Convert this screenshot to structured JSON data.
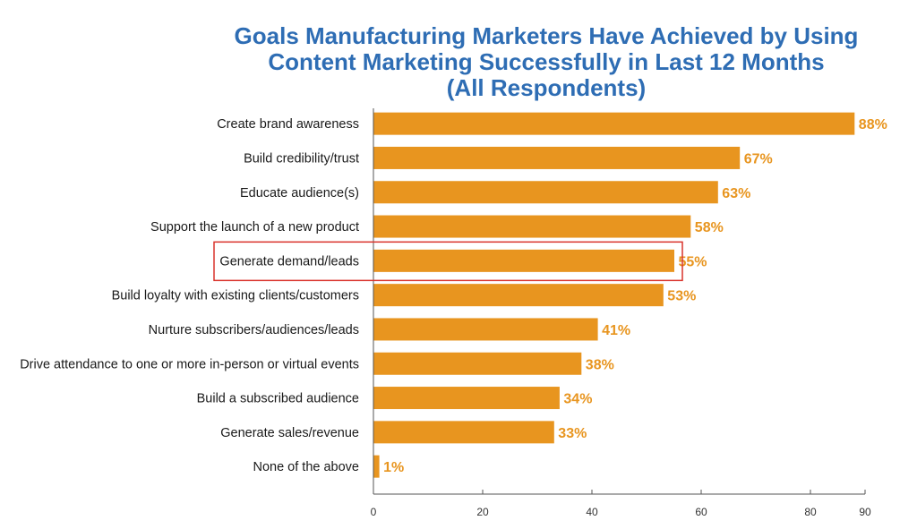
{
  "chart_data": {
    "type": "bar",
    "orientation": "horizontal",
    "title": [
      "Goals Manufacturing Marketers Have Achieved by Using",
      "Content Marketing Successfully in Last 12 Months",
      "(All Respondents)"
    ],
    "categories": [
      "Create brand awareness",
      "Build credibility/trust",
      "Educate audience(s)",
      "Support the launch of a new product",
      "Generate demand/leads",
      "Build loyalty with existing clients/customers",
      "Nurture subscribers/audiences/leads",
      "Drive attendance to one or more in-person or virtual events",
      "Build a subscribed audience",
      "Generate sales/revenue",
      "None of the above"
    ],
    "values": [
      88,
      67,
      63,
      58,
      55,
      53,
      41,
      38,
      34,
      33,
      1
    ],
    "value_labels": [
      "88%",
      "67%",
      "63%",
      "58%",
      "55%",
      "53%",
      "41%",
      "38%",
      "34%",
      "33%",
      "1%"
    ],
    "xlim": [
      0,
      90
    ],
    "xticks": [
      0,
      20,
      40,
      60,
      80,
      90
    ],
    "highlighted_category": "Generate demand/leads",
    "grid": false,
    "colors": {
      "bar": "#e8951f",
      "value_label": "#e8951f",
      "title": "#2e6db4",
      "highlight_box": "#d9332b",
      "axis": "#555555"
    }
  }
}
